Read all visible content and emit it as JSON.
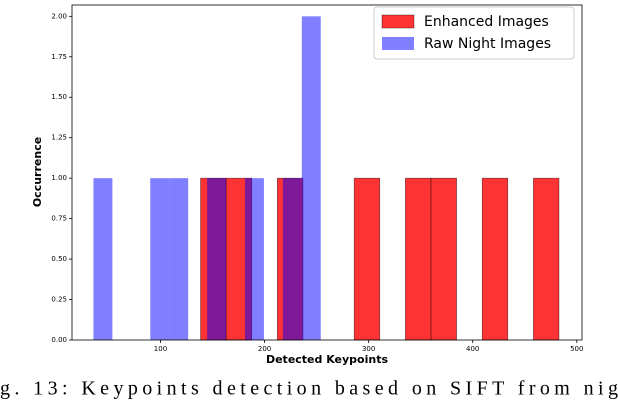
{
  "chart_data": {
    "type": "histogram",
    "x_label": "Detected Keypoints",
    "y_label": "Occurrence",
    "caption": "g. 13: Keypoints detection based on SIFT from nig",
    "series": [
      {
        "name": "Enhanced Images",
        "color": "rgba(255,0,0,0.8)",
        "bins": [
          138.5,
          163.1,
          187.7,
          212.3,
          236.9,
          261.5,
          286.1,
          310.7,
          335.3,
          359.9,
          384.5,
          409.1,
          433.7,
          458.3,
          482.9
        ],
        "values": [
          1,
          1,
          0,
          1,
          0,
          0,
          1,
          0,
          1,
          1,
          0,
          1,
          0,
          1
        ]
      },
      {
        "name": "Raw Night Images",
        "color": "rgba(0,0,255,0.5)",
        "bins": [
          35.6,
          53.8,
          72,
          90.2,
          108.4,
          126.6,
          144.8,
          163,
          181.2,
          199.4,
          217.6,
          235.8,
          254
        ],
        "values": [
          1,
          0,
          0,
          1,
          1,
          0,
          1,
          0,
          1,
          0,
          1,
          2
        ]
      }
    ],
    "xlim": [
      15,
      505
    ],
    "xticks": [
      100,
      200,
      300,
      400,
      500
    ],
    "ylim": [
      0,
      2.07
    ],
    "yticks": [
      {
        "value": 0,
        "label": "0.00"
      },
      {
        "value": 0.25,
        "label": "0.25"
      },
      {
        "value": 0.5,
        "label": "0.50"
      },
      {
        "value": 0.75,
        "label": "0.75"
      },
      {
        "value": 1,
        "label": "1.00"
      },
      {
        "value": 1.25,
        "label": "1.25"
      },
      {
        "value": 1.5,
        "label": "1.50"
      },
      {
        "value": 1.75,
        "label": "1.75"
      },
      {
        "value": 2,
        "label": "2.00"
      }
    ],
    "legend": "upper right"
  }
}
